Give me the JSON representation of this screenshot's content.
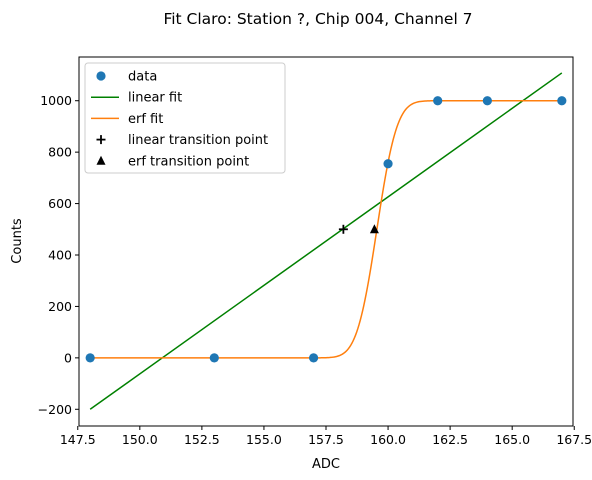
{
  "chart_data": {
    "type": "scatter",
    "title": "Fit Claro: Station ?, Chip 004, Channel 7",
    "xlabel": "ADC",
    "ylabel": "Counts",
    "xlim": [
      147.55,
      167.45
    ],
    "ylim": [
      -265,
      1170
    ],
    "xticks": [
      147.5,
      150.0,
      152.5,
      155.0,
      157.5,
      160.0,
      162.5,
      165.0,
      167.5
    ],
    "xtick_labels": [
      "147.5",
      "150.0",
      "152.5",
      "155.0",
      "157.5",
      "160.0",
      "162.5",
      "165.0",
      "167.5"
    ],
    "yticks": [
      -200,
      0,
      200,
      400,
      600,
      800,
      1000
    ],
    "ytick_labels": [
      "−200",
      "0",
      "200",
      "400",
      "600",
      "800",
      "1000"
    ],
    "grid": false,
    "legend_position": "top-left",
    "series": [
      {
        "name": "data",
        "kind": "points",
        "marker": "circle",
        "color": "#1f77b4",
        "x": [
          148,
          153,
          157,
          160,
          162,
          164,
          167
        ],
        "y": [
          0,
          0,
          0,
          755,
          1000,
          1000,
          1000
        ]
      },
      {
        "name": "linear fit",
        "kind": "line",
        "color": "#008000",
        "x": [
          148,
          167
        ],
        "y": [
          -200,
          1108
        ]
      },
      {
        "name": "erf fit",
        "kind": "curve",
        "color": "#ff7f0e",
        "function": "erf",
        "amplitude": 1000,
        "center": 159.55,
        "width": 0.9,
        "x_range": [
          148,
          167
        ]
      },
      {
        "name": "linear transition point",
        "kind": "points",
        "marker": "plus",
        "color": "#000000",
        "x": [
          158.2
        ],
        "y": [
          500
        ]
      },
      {
        "name": "erf transition point",
        "kind": "points",
        "marker": "triangle",
        "color": "#000000",
        "x": [
          159.45
        ],
        "y": [
          500
        ]
      }
    ]
  }
}
